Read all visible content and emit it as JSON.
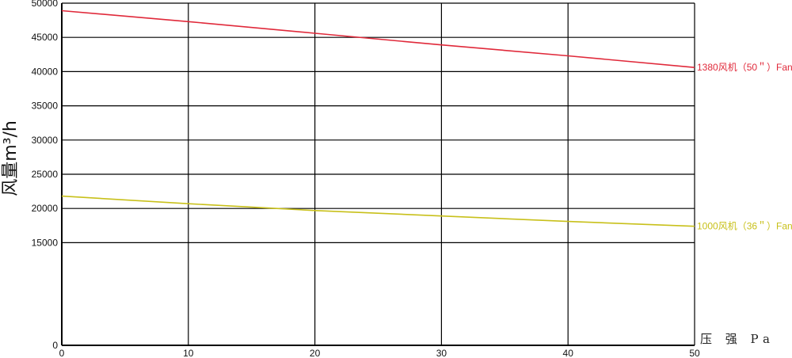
{
  "chart_data": {
    "type": "line",
    "xlabel": "压 强 Pa",
    "ylabel": "风量m³/h",
    "xlim": [
      0,
      50
    ],
    "ylim": [
      0,
      50000
    ],
    "x_ticks": [
      "0",
      "10",
      "20",
      "30",
      "40",
      "50"
    ],
    "y_ticks": [
      "0",
      "15000",
      "20000",
      "25000",
      "30000",
      "35000",
      "40000",
      "45000",
      "50000"
    ],
    "grid": true,
    "series": [
      {
        "name": "1380风机（50＂）Fan",
        "color": "#e0293a",
        "x": [
          0,
          10,
          20,
          30,
          40,
          50
        ],
        "y": [
          48900,
          47300,
          45600,
          43900,
          42300,
          40600
        ]
      },
      {
        "name": "1000风机（36＂）Fan",
        "color": "#c8c01a",
        "x": [
          0,
          10,
          20,
          30,
          40,
          50
        ],
        "y": [
          21800,
          20700,
          19700,
          18900,
          18100,
          17400
        ]
      }
    ]
  }
}
